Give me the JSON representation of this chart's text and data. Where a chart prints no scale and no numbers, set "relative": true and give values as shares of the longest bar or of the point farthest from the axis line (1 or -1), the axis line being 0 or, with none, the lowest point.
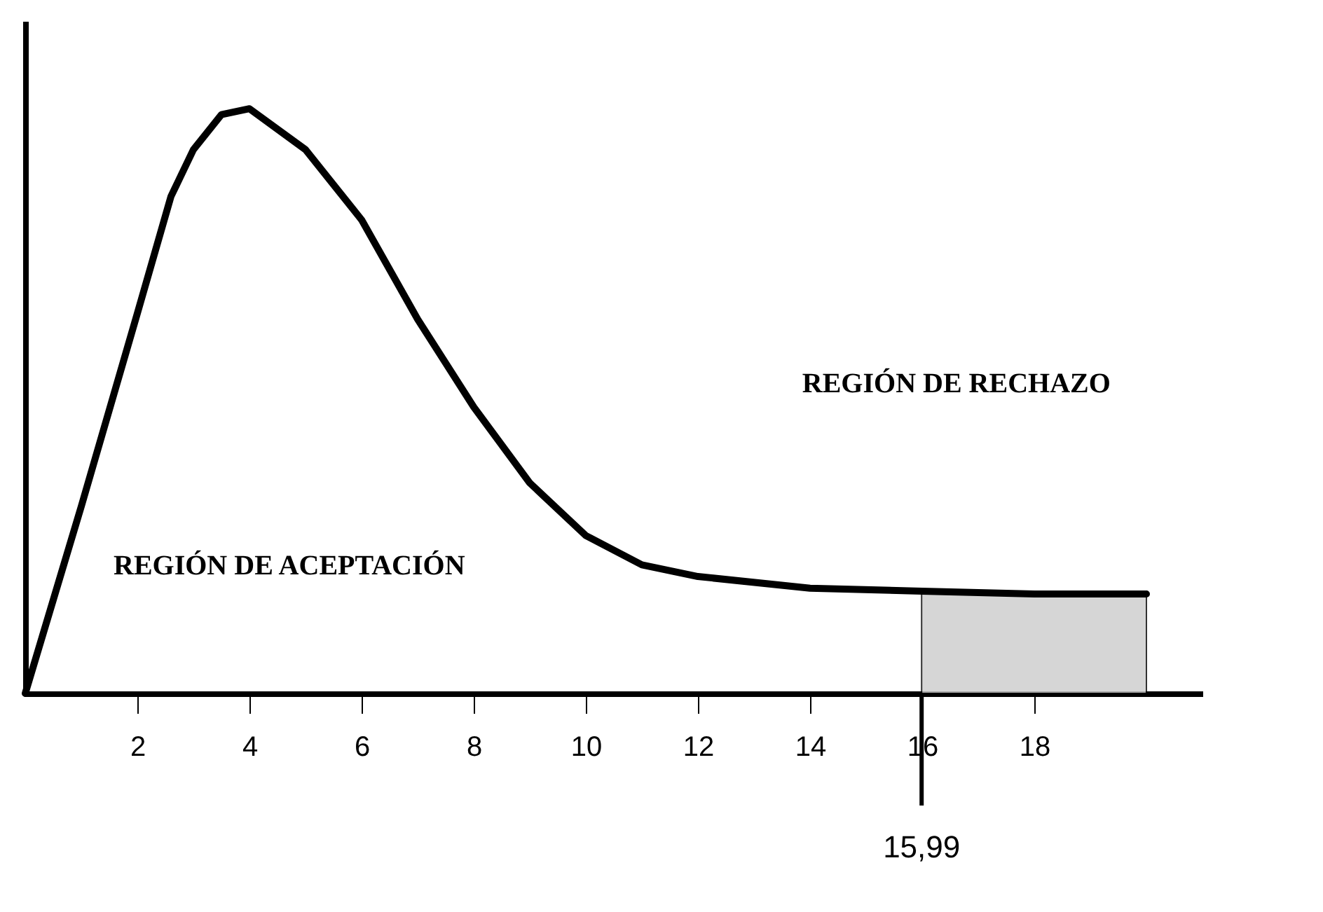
{
  "chart_data": {
    "type": "line",
    "relative": true,
    "color": "#000000",
    "x": [
      0,
      1,
      2,
      2.6,
      3,
      3.5,
      4,
      5,
      6,
      7,
      8,
      9,
      10,
      11,
      12,
      14,
      16,
      18,
      20
    ],
    "values": [
      0,
      0.32,
      0.65,
      0.85,
      0.93,
      0.99,
      1.0,
      0.93,
      0.81,
      0.64,
      0.49,
      0.36,
      0.27,
      0.22,
      0.2,
      0.18,
      0.175,
      0.17,
      0.17
    ],
    "xlim": [
      0,
      21
    ],
    "xticks": [
      2,
      4,
      6,
      8,
      10,
      12,
      14,
      16,
      18
    ],
    "tick_labels": "x",
    "grid": false,
    "bands": [
      {
        "axis": "x",
        "from": 15.99,
        "to": 20,
        "color": "#cccccc"
      }
    ],
    "ref_lines": [
      {
        "axis": "x",
        "value": 15.99,
        "label": "15,99"
      }
    ],
    "annotations": [
      "REGIÓN DE ACEPTACIÓN",
      "REGIÓN DE RECHAZO"
    ]
  }
}
